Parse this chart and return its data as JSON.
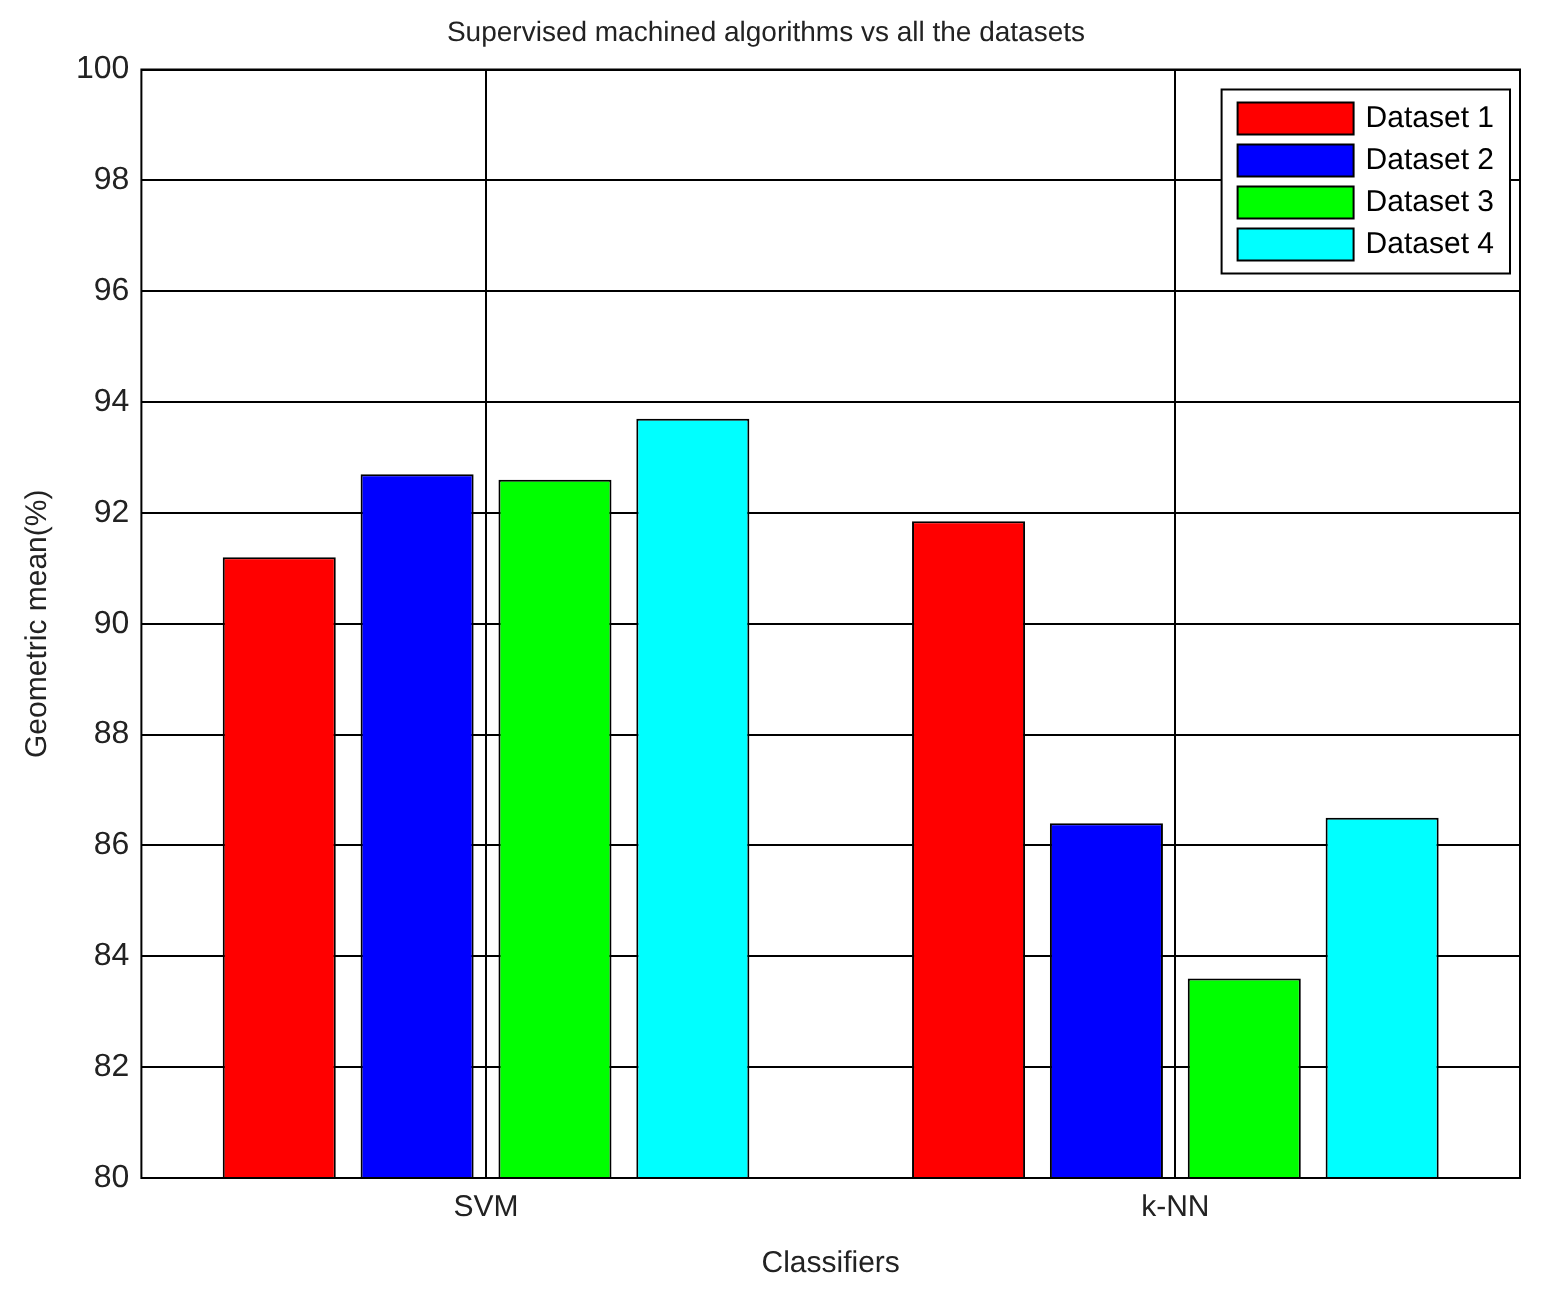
{
  "chart_data": {
    "type": "bar",
    "title": "Supervised machined algorithms vs all the datasets",
    "xlabel": "Classifiers",
    "ylabel": "Geometric mean(%)",
    "categories": [
      "SVM",
      "k-NN"
    ],
    "series": [
      {
        "name": "Dataset 1",
        "color": "#ff0000",
        "values": [
          91.2,
          91.85
        ]
      },
      {
        "name": "Dataset 2",
        "color": "#0000ff",
        "values": [
          92.7,
          86.4
        ]
      },
      {
        "name": "Dataset 3",
        "color": "#00ff00",
        "values": [
          92.6,
          83.6
        ]
      },
      {
        "name": "Dataset 4",
        "color": "#00ffff",
        "values": [
          93.7,
          86.5
        ]
      }
    ],
    "ylim": [
      80,
      100
    ],
    "yticks": [
      80,
      82,
      84,
      86,
      88,
      90,
      92,
      94,
      96,
      98,
      100
    ],
    "grid": true,
    "legend": "top right"
  }
}
